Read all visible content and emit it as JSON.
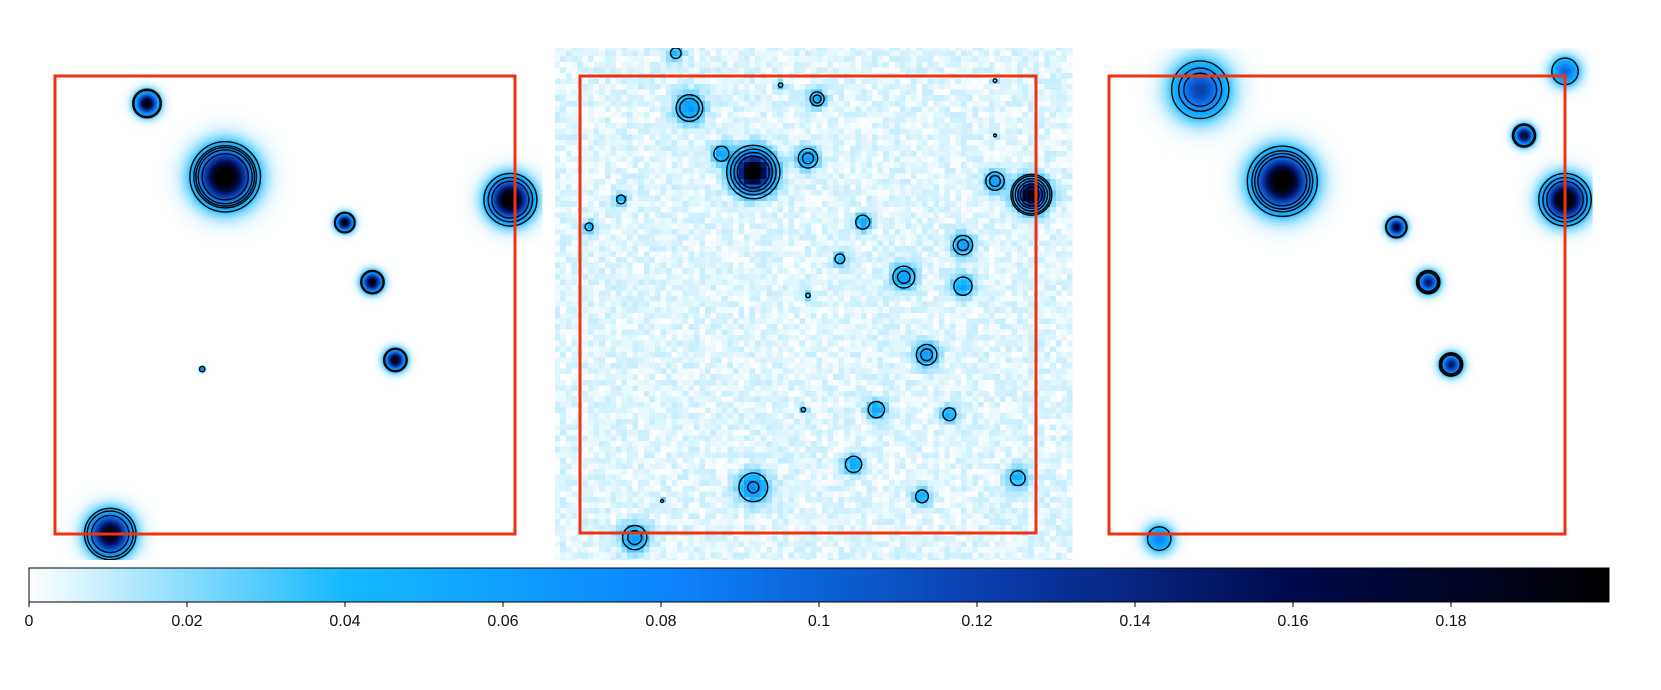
{
  "chart_data": {
    "type": "heatmap",
    "panels": [
      {
        "name": "",
        "sources": [
          {
            "x": 0.2,
            "y": 0.94,
            "amp": 0.2,
            "sigma": 0.016,
            "contours": [
              0.04,
              0.03
            ]
          },
          {
            "x": 0.37,
            "y": 0.78,
            "amp": 0.22,
            "sigma": 0.04,
            "contours": [
              0.1,
              0.075,
              0.062,
              0.052,
              0.035
            ]
          },
          {
            "x": 0.99,
            "y": 0.73,
            "amp": 0.22,
            "sigma": 0.03,
            "contours": [
              0.09,
              0.06,
              0.035
            ]
          },
          {
            "x": 0.63,
            "y": 0.68,
            "amp": 0.2,
            "sigma": 0.012,
            "contours": [
              0.045,
              0.035
            ]
          },
          {
            "x": 0.69,
            "y": 0.55,
            "amp": 0.2,
            "sigma": 0.014,
            "contours": [
              0.05,
              0.038
            ]
          },
          {
            "x": 0.74,
            "y": 0.38,
            "amp": 0.2,
            "sigma": 0.014,
            "contours": [
              0.05,
              0.038
            ]
          },
          {
            "x": 0.32,
            "y": 0.36,
            "amp": 0.1,
            "sigma": 0.004,
            "contours": [
              0.035
            ]
          },
          {
            "x": 0.12,
            "y": 0.0,
            "amp": 0.2,
            "sigma": 0.03,
            "contours": [
              0.08,
              0.05,
              0.035
            ]
          }
        ]
      },
      {
        "name": "",
        "sources": [
          {
            "x": 0.24,
            "y": 0.93,
            "amp": 0.06,
            "sigma": 0.022,
            "contours": [
              0.038,
              0.025
            ]
          },
          {
            "x": 0.21,
            "y": 1.05,
            "amp": 0.04,
            "sigma": 0.012,
            "contours": [
              0.025
            ]
          },
          {
            "x": 0.44,
            "y": 0.98,
            "amp": 0.035,
            "sigma": 0.006,
            "contours": [
              0.025
            ]
          },
          {
            "x": 0.52,
            "y": 0.95,
            "amp": 0.05,
            "sigma": 0.013,
            "contours": [
              0.04,
              0.025
            ]
          },
          {
            "x": 0.91,
            "y": 0.99,
            "amp": 0.05,
            "sigma": 0.004,
            "contours": [
              0.03
            ]
          },
          {
            "x": 0.91,
            "y": 0.87,
            "amp": 0.04,
            "sigma": 0.004,
            "contours": [
              0.03
            ]
          },
          {
            "x": 0.38,
            "y": 0.79,
            "amp": 0.22,
            "sigma": 0.028,
            "contours": [
              0.1,
              0.07,
              0.045,
              0.025
            ]
          },
          {
            "x": 0.31,
            "y": 0.83,
            "amp": 0.05,
            "sigma": 0.014,
            "contours": [
              0.025
            ]
          },
          {
            "x": 0.5,
            "y": 0.82,
            "amp": 0.06,
            "sigma": 0.016,
            "contours": [
              0.045,
              0.025
            ]
          },
          {
            "x": 0.99,
            "y": 0.74,
            "amp": 0.2,
            "sigma": 0.022,
            "contours": [
              0.15,
              0.11,
              0.08,
              0.055,
              0.035,
              0.025
            ]
          },
          {
            "x": 0.91,
            "y": 0.77,
            "amp": 0.055,
            "sigma": 0.016,
            "contours": [
              0.042,
              0.025
            ]
          },
          {
            "x": 0.09,
            "y": 0.73,
            "amp": 0.04,
            "sigma": 0.01,
            "contours": [
              0.025
            ]
          },
          {
            "x": 0.02,
            "y": 0.67,
            "amp": 0.04,
            "sigma": 0.009,
            "contours": [
              0.025
            ]
          },
          {
            "x": 0.62,
            "y": 0.68,
            "amp": 0.05,
            "sigma": 0.013,
            "contours": [
              0.025
            ]
          },
          {
            "x": 0.84,
            "y": 0.63,
            "amp": 0.06,
            "sigma": 0.016,
            "contours": [
              0.045,
              0.025
            ]
          },
          {
            "x": 0.57,
            "y": 0.6,
            "amp": 0.04,
            "sigma": 0.011,
            "contours": [
              0.025
            ]
          },
          {
            "x": 0.71,
            "y": 0.56,
            "amp": 0.06,
            "sigma": 0.018,
            "contours": [
              0.045,
              0.025
            ]
          },
          {
            "x": 0.84,
            "y": 0.54,
            "amp": 0.05,
            "sigma": 0.017,
            "contours": [
              0.025
            ]
          },
          {
            "x": 0.5,
            "y": 0.52,
            "amp": 0.035,
            "sigma": 0.006,
            "contours": [
              0.025
            ]
          },
          {
            "x": 0.76,
            "y": 0.39,
            "amp": 0.06,
            "sigma": 0.017,
            "contours": [
              0.045,
              0.025
            ]
          },
          {
            "x": 0.65,
            "y": 0.27,
            "amp": 0.05,
            "sigma": 0.015,
            "contours": [
              0.025
            ]
          },
          {
            "x": 0.81,
            "y": 0.26,
            "amp": 0.045,
            "sigma": 0.013,
            "contours": [
              0.025
            ]
          },
          {
            "x": 0.49,
            "y": 0.27,
            "amp": 0.035,
            "sigma": 0.006,
            "contours": [
              0.025
            ]
          },
          {
            "x": 0.6,
            "y": 0.15,
            "amp": 0.05,
            "sigma": 0.015,
            "contours": [
              0.025
            ]
          },
          {
            "x": 0.38,
            "y": 0.1,
            "amp": 0.07,
            "sigma": 0.022,
            "contours": [
              0.06,
              0.025
            ]
          },
          {
            "x": 0.75,
            "y": 0.08,
            "amp": 0.045,
            "sigma": 0.013,
            "contours": [
              0.025
            ]
          },
          {
            "x": 0.96,
            "y": 0.12,
            "amp": 0.045,
            "sigma": 0.015,
            "contours": [
              0.025
            ]
          },
          {
            "x": 0.18,
            "y": 0.07,
            "amp": 0.035,
            "sigma": 0.004,
            "contours": [
              0.025
            ]
          },
          {
            "x": 0.12,
            "y": -0.01,
            "amp": 0.06,
            "sigma": 0.02,
            "contours": [
              0.045,
              0.025
            ]
          }
        ]
      },
      {
        "name": "",
        "sources": [
          {
            "x": 0.2,
            "y": 0.97,
            "amp": 0.12,
            "sigma": 0.04,
            "contours": [
              0.08,
              0.06,
              0.035
            ]
          },
          {
            "x": 0.38,
            "y": 0.77,
            "amp": 0.22,
            "sigma": 0.04,
            "contours": [
              0.09,
              0.07,
              0.055,
              0.035
            ]
          },
          {
            "x": 1.0,
            "y": 0.73,
            "amp": 0.22,
            "sigma": 0.03,
            "contours": [
              0.09,
              0.06,
              0.035
            ]
          },
          {
            "x": 0.91,
            "y": 0.87,
            "amp": 0.18,
            "sigma": 0.014,
            "contours": [
              0.05,
              0.035
            ]
          },
          {
            "x": 0.63,
            "y": 0.67,
            "amp": 0.18,
            "sigma": 0.013,
            "contours": [
              0.045,
              0.035
            ]
          },
          {
            "x": 0.7,
            "y": 0.55,
            "amp": 0.15,
            "sigma": 0.015,
            "contours": [
              0.06,
              0.045,
              0.035
            ]
          },
          {
            "x": 0.75,
            "y": 0.37,
            "amp": 0.15,
            "sigma": 0.015,
            "contours": [
              0.06,
              0.045,
              0.035
            ]
          },
          {
            "x": 1.0,
            "y": 1.01,
            "amp": 0.1,
            "sigma": 0.02,
            "contours": [
              0.035
            ]
          },
          {
            "x": 0.11,
            "y": -0.01,
            "amp": 0.08,
            "sigma": 0.02,
            "contours": [
              0.035
            ]
          }
        ]
      }
    ],
    "colorbar": {
      "vmin": 0,
      "vmax": 0.2,
      "ticks": [
        0,
        0.02,
        0.04,
        0.06,
        0.08,
        0.1,
        0.12,
        0.14,
        0.16,
        0.18
      ],
      "tick_labels": [
        "0",
        "0.02",
        "0.04",
        "0.06",
        "0.08",
        "0.1",
        "0.12",
        "0.14",
        "0.16",
        "0.18"
      ],
      "stops": [
        {
          "value": 0.0,
          "color": "#ffffff"
        },
        {
          "value": 0.04,
          "color": "#14b9ff"
        },
        {
          "value": 0.08,
          "color": "#0c86ff"
        },
        {
          "value": 0.12,
          "color": "#0b3fb0"
        },
        {
          "value": 0.16,
          "color": "#000a4d"
        },
        {
          "value": 0.2,
          "color": "#000000"
        }
      ]
    },
    "frame_color": "#ee3311",
    "contour_color": "#000000"
  }
}
